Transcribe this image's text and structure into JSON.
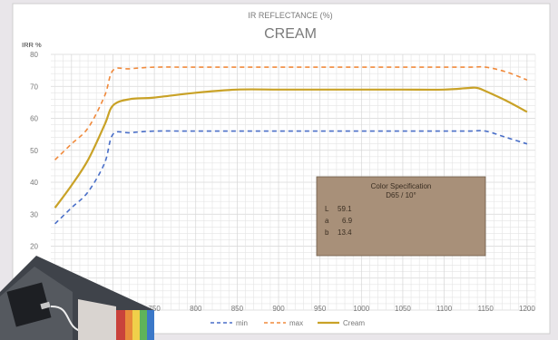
{
  "chart_data": {
    "type": "line",
    "title": "IR REFLECTANCE (%)",
    "subtitle": "CREAM",
    "ylabel": "IRR %",
    "xlabel": "",
    "xlim": [
      625,
      1210
    ],
    "ylim": [
      0,
      80
    ],
    "x_ticks": [
      700,
      750,
      800,
      850,
      900,
      950,
      1000,
      1050,
      1100,
      1150,
      1200
    ],
    "y_ticks": [
      20,
      30,
      40,
      50,
      60,
      70,
      80
    ],
    "grid": true,
    "legend_position": "bottom",
    "series": [
      {
        "name": "min",
        "color": "#4a6fc8",
        "style": "dashed",
        "x": [
          630,
          650,
          670,
          690,
          700,
          720,
          750,
          800,
          850,
          900,
          950,
          1000,
          1050,
          1100,
          1130,
          1150,
          1175,
          1200
        ],
        "values": [
          27,
          32,
          37,
          46,
          55,
          55.5,
          56,
          56,
          56,
          56,
          56,
          56,
          56,
          56,
          56,
          56,
          54,
          52
        ]
      },
      {
        "name": "max",
        "color": "#f08a3c",
        "style": "dashed",
        "x": [
          630,
          650,
          670,
          690,
          700,
          720,
          750,
          800,
          850,
          900,
          950,
          1000,
          1050,
          1100,
          1130,
          1150,
          1175,
          1200
        ],
        "values": [
          47,
          52,
          57,
          67,
          75,
          75.5,
          76,
          76,
          76,
          76,
          76,
          76,
          76,
          76,
          76,
          76,
          74.5,
          72
        ]
      },
      {
        "name": "Cream",
        "color": "#c9a227",
        "style": "solid",
        "x": [
          630,
          650,
          670,
          690,
          700,
          720,
          750,
          800,
          850,
          900,
          950,
          1000,
          1050,
          1100,
          1130,
          1140,
          1150,
          1175,
          1200
        ],
        "values": [
          32,
          39,
          47,
          58,
          64,
          66,
          66.5,
          68,
          69,
          69,
          69,
          69,
          69,
          69,
          69.5,
          69.5,
          68.5,
          65.5,
          62
        ]
      }
    ],
    "annotation": {
      "title": "Color Specification",
      "subtitle": "D65 / 10°",
      "rows": [
        {
          "label": "L",
          "value": "59.1"
        },
        {
          "label": "a",
          "value": "6.9"
        },
        {
          "label": "b",
          "value": "13.4"
        }
      ],
      "bg_color": "#a89079"
    }
  }
}
